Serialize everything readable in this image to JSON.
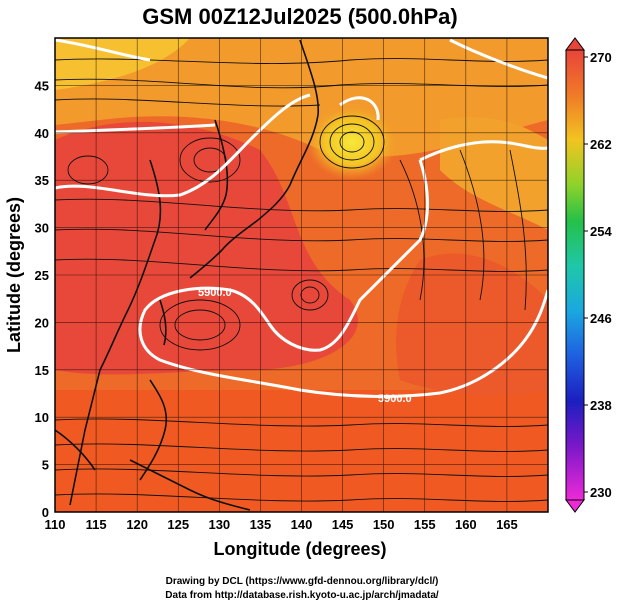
{
  "title": "GSM 00Z12Jul2025 (500.0hPa)",
  "xlabel": "Longitude (degrees)",
  "ylabel": "Latitude  (degrees)",
  "x_ticks": [
    "110",
    "115",
    "120",
    "125",
    "130",
    "135",
    "140",
    "145",
    "150",
    "155",
    "160",
    "165"
  ],
  "y_ticks": [
    "0",
    "5",
    "10",
    "15",
    "20",
    "25",
    "30",
    "35",
    "40",
    "45"
  ],
  "colorbar": {
    "ticks": [
      "270",
      "262",
      "254",
      "246",
      "238",
      "230"
    ],
    "colors": [
      "#e8443a",
      "#f08a2a",
      "#f2c420",
      "#7ad12a",
      "#25c048",
      "#1fc7a8",
      "#1aa8e0",
      "#1f5fe0",
      "#1b1fc0",
      "#6a18c8",
      "#c21fc8",
      "#ee2ad8"
    ]
  },
  "contour_labels": [
    "5900.0",
    "5900.0"
  ],
  "credits": {
    "line1": "Drawing by DCL (https://www.gfd-dennou.org/library/dcl/)",
    "line2": "Data from http://database.rish.kyoto-u.ac.jp/arch/jmadata/"
  },
  "map": {
    "type": "temperature-streamline",
    "lon_range": [
      110,
      170
    ],
    "lat_range": [
      0,
      50
    ],
    "color_scale_range": [
      230,
      270
    ],
    "contour_level": 5900.0,
    "field_colors": {
      "cool": "#f6d43c",
      "warm": "#f07a26",
      "hot": "#e8443a",
      "grid": "#000000"
    }
  }
}
